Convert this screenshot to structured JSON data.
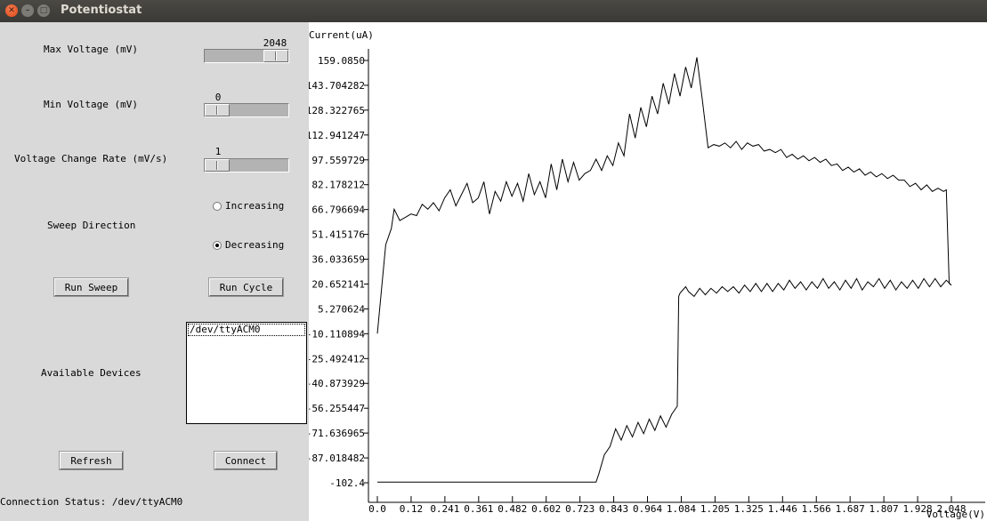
{
  "window": {
    "title": "Potentiostat",
    "close_glyph": "✕",
    "minimize_glyph": "–",
    "maximize_glyph": "□"
  },
  "controls": {
    "max_voltage": {
      "label": "Max Voltage (mV)",
      "value": "2048",
      "fraction": 1.0
    },
    "min_voltage": {
      "label": "Min Voltage (mV)",
      "value": "0",
      "fraction": 0.0
    },
    "rate": {
      "label": "Voltage Change Rate (mV/s)",
      "value": "1",
      "fraction": 0.0
    },
    "sweep_direction": {
      "label": "Sweep Direction",
      "options": [
        "Increasing",
        "Decreasing"
      ],
      "selected": "Decreasing"
    },
    "run_sweep_label": "Run Sweep",
    "run_cycle_label": "Run Cycle",
    "devices_label": "Available Devices",
    "devices": [
      "/dev/ttyACM0"
    ],
    "refresh_label": "Refresh",
    "connect_label": "Connect",
    "status_text": "Connection Status: /dev/ttyACM0"
  },
  "chart_data": {
    "type": "line",
    "ylabel": "Current(uA)",
    "xlabel": "Voltage(V)",
    "x_ticks": [
      "0.0",
      "0.12",
      "0.241",
      "0.361",
      "0.482",
      "0.602",
      "0.723",
      "0.843",
      "0.964",
      "1.084",
      "1.205",
      "1.325",
      "1.446",
      "1.566",
      "1.687",
      "1.807",
      "1.928",
      "2.048"
    ],
    "y_ticks": [
      "159.0850",
      "143.704282",
      "128.322765",
      "112.941247",
      "97.559729",
      "82.178212",
      "66.796694",
      "51.415176",
      "36.033659",
      "20.652141",
      "5.270624",
      "-10.110894",
      "-25.492412",
      "-40.873929",
      "-56.255447",
      "-71.636965",
      "-87.018482",
      "-102.4"
    ],
    "xlim": [
      0.0,
      2.048
    ],
    "ylim": [
      -102.4,
      159.085
    ],
    "grid": false,
    "series": [
      {
        "values": [
          [
            0.0,
            -10
          ],
          [
            0.03,
            45
          ],
          [
            0.05,
            55
          ],
          [
            0.06,
            67
          ],
          [
            0.08,
            60
          ],
          [
            0.1,
            62
          ],
          [
            0.12,
            64
          ],
          [
            0.14,
            63
          ],
          [
            0.16,
            70
          ],
          [
            0.18,
            67
          ],
          [
            0.2,
            71
          ],
          [
            0.22,
            66
          ],
          [
            0.24,
            74
          ],
          [
            0.26,
            79
          ],
          [
            0.28,
            69
          ],
          [
            0.3,
            76
          ],
          [
            0.32,
            83
          ],
          [
            0.34,
            71
          ],
          [
            0.36,
            74
          ],
          [
            0.38,
            84
          ],
          [
            0.4,
            64
          ],
          [
            0.42,
            78
          ],
          [
            0.44,
            72
          ],
          [
            0.46,
            84
          ],
          [
            0.48,
            75
          ],
          [
            0.5,
            83
          ],
          [
            0.52,
            72
          ],
          [
            0.54,
            89
          ],
          [
            0.56,
            76
          ],
          [
            0.58,
            84
          ],
          [
            0.6,
            74
          ],
          [
            0.62,
            95
          ],
          [
            0.64,
            79
          ],
          [
            0.66,
            98
          ],
          [
            0.68,
            84
          ],
          [
            0.7,
            96
          ],
          [
            0.72,
            85
          ],
          [
            0.74,
            89
          ],
          [
            0.76,
            91
          ],
          [
            0.78,
            98
          ],
          [
            0.8,
            91
          ],
          [
            0.82,
            100
          ],
          [
            0.84,
            94
          ],
          [
            0.86,
            108
          ],
          [
            0.88,
            100
          ],
          [
            0.9,
            126
          ],
          [
            0.92,
            111
          ],
          [
            0.94,
            130
          ],
          [
            0.96,
            118
          ],
          [
            0.98,
            137
          ],
          [
            1.0,
            126
          ],
          [
            1.02,
            145
          ],
          [
            1.04,
            132
          ],
          [
            1.06,
            151
          ],
          [
            1.08,
            137
          ],
          [
            1.1,
            155
          ],
          [
            1.12,
            142
          ],
          [
            1.14,
            161
          ],
          [
            1.16,
            134
          ],
          [
            1.18,
            105
          ],
          [
            1.2,
            107
          ],
          [
            1.22,
            106
          ],
          [
            1.24,
            108
          ],
          [
            1.26,
            105
          ],
          [
            1.28,
            109
          ],
          [
            1.3,
            104
          ],
          [
            1.32,
            108
          ],
          [
            1.34,
            106
          ],
          [
            1.36,
            107
          ],
          [
            1.38,
            103
          ],
          [
            1.4,
            104
          ],
          [
            1.42,
            102
          ],
          [
            1.44,
            104
          ],
          [
            1.46,
            99
          ],
          [
            1.48,
            101
          ],
          [
            1.5,
            98
          ],
          [
            1.52,
            100
          ],
          [
            1.54,
            97
          ],
          [
            1.56,
            99
          ],
          [
            1.58,
            96
          ],
          [
            1.6,
            98
          ],
          [
            1.62,
            94
          ],
          [
            1.64,
            95
          ],
          [
            1.66,
            91
          ],
          [
            1.68,
            93
          ],
          [
            1.7,
            90
          ],
          [
            1.72,
            92
          ],
          [
            1.74,
            88
          ],
          [
            1.76,
            90
          ],
          [
            1.78,
            87
          ],
          [
            1.8,
            89
          ],
          [
            1.82,
            86
          ],
          [
            1.84,
            88
          ],
          [
            1.86,
            85
          ],
          [
            1.88,
            85
          ],
          [
            1.9,
            81
          ],
          [
            1.92,
            83
          ],
          [
            1.94,
            79
          ],
          [
            1.96,
            82
          ],
          [
            1.98,
            78
          ],
          [
            2.0,
            80
          ],
          [
            2.02,
            78
          ],
          [
            2.03,
            79
          ],
          [
            2.04,
            21
          ],
          [
            2.048,
            20
          ],
          [
            2.03,
            23
          ],
          [
            2.01,
            19
          ],
          [
            1.99,
            24
          ],
          [
            1.97,
            19
          ],
          [
            1.95,
            24
          ],
          [
            1.93,
            18
          ],
          [
            1.91,
            23
          ],
          [
            1.89,
            18
          ],
          [
            1.87,
            22
          ],
          [
            1.85,
            17
          ],
          [
            1.83,
            23
          ],
          [
            1.81,
            18
          ],
          [
            1.79,
            24
          ],
          [
            1.77,
            19
          ],
          [
            1.75,
            22
          ],
          [
            1.73,
            17
          ],
          [
            1.71,
            24
          ],
          [
            1.69,
            18
          ],
          [
            1.67,
            23
          ],
          [
            1.65,
            17
          ],
          [
            1.63,
            22
          ],
          [
            1.61,
            18
          ],
          [
            1.59,
            24
          ],
          [
            1.57,
            18
          ],
          [
            1.55,
            22
          ],
          [
            1.53,
            17
          ],
          [
            1.51,
            22
          ],
          [
            1.49,
            18
          ],
          [
            1.47,
            23
          ],
          [
            1.45,
            17
          ],
          [
            1.43,
            21
          ],
          [
            1.41,
            16
          ],
          [
            1.39,
            21
          ],
          [
            1.37,
            16
          ],
          [
            1.35,
            21
          ],
          [
            1.33,
            16
          ],
          [
            1.31,
            20
          ],
          [
            1.29,
            15
          ],
          [
            1.27,
            19
          ],
          [
            1.25,
            16
          ],
          [
            1.23,
            19
          ],
          [
            1.21,
            15
          ],
          [
            1.19,
            18
          ],
          [
            1.17,
            14
          ],
          [
            1.15,
            18
          ],
          [
            1.13,
            13
          ],
          [
            1.11,
            16
          ],
          [
            1.1,
            19
          ],
          [
            1.08,
            15
          ],
          [
            1.075,
            13
          ],
          [
            1.07,
            -55
          ],
          [
            1.05,
            -60
          ],
          [
            1.03,
            -68
          ],
          [
            1.01,
            -61
          ],
          [
            0.99,
            -70
          ],
          [
            0.97,
            -63
          ],
          [
            0.95,
            -72
          ],
          [
            0.93,
            -65
          ],
          [
            0.91,
            -74
          ],
          [
            0.89,
            -67
          ],
          [
            0.87,
            -76
          ],
          [
            0.85,
            -69
          ],
          [
            0.83,
            -80
          ],
          [
            0.81,
            -85
          ],
          [
            0.79,
            -97
          ],
          [
            0.78,
            -102
          ],
          [
            0.0,
            -102
          ]
        ]
      }
    ]
  }
}
